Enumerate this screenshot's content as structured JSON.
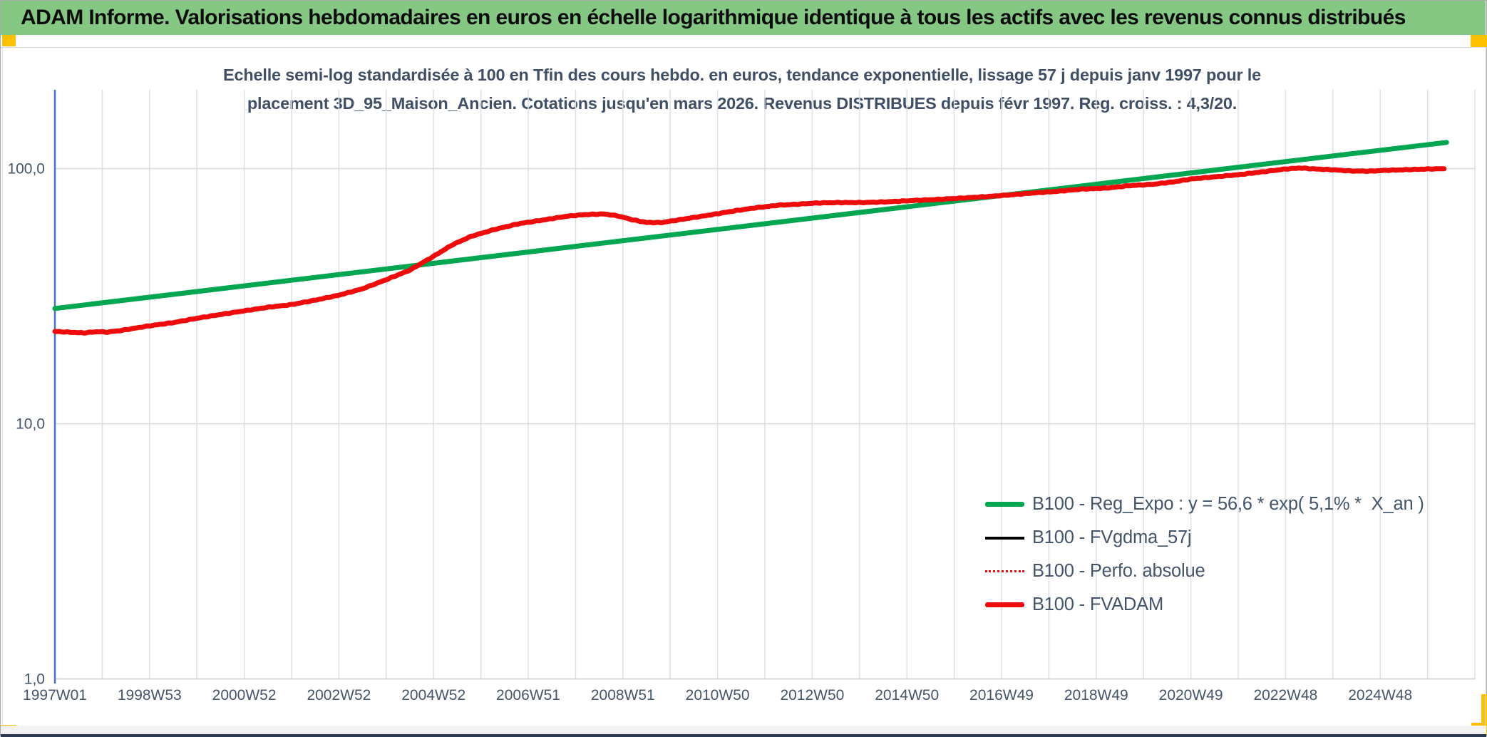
{
  "header": {
    "title": "ADAM Informe. Valorisations hebdomadaires en euros en échelle logarithmique identique à tous les actifs avec les revenus connus distribués",
    "background_color": "#84C884",
    "marker_color": "#FFC000"
  },
  "chart_data": {
    "type": "line",
    "title_line1": "Echelle semi-log standardisée à 100 en Tfin des cours hebdo. en euros, tendance exponentielle, lissage 57 j depuis janv 1997 pour le",
    "title_line2": "placement 3D_95_Maison_Ancien. Cotations jusqu'en mars 2026. Revenus DISTRIBUES depuis févr 1997. Reg. croiss. : 4,3/20.",
    "y_scale": "log10",
    "ylim": [
      1,
      200
    ],
    "grid": true,
    "y_ticks": [
      {
        "label": "100,0",
        "value": 100
      },
      {
        "label": "10,0",
        "value": 10
      },
      {
        "label": "1,0",
        "value": 1
      }
    ],
    "x_ticks": [
      {
        "label": "1997W01",
        "year": 1997
      },
      {
        "label": "1998W53",
        "year": 1999
      },
      {
        "label": "2000W52",
        "year": 2001
      },
      {
        "label": "2002W52",
        "year": 2003
      },
      {
        "label": "2004W52",
        "year": 2005
      },
      {
        "label": "2006W51",
        "year": 2007
      },
      {
        "label": "2008W51",
        "year": 2009
      },
      {
        "label": "2010W50",
        "year": 2011
      },
      {
        "label": "2012W50",
        "year": 2013
      },
      {
        "label": "2014W50",
        "year": 2015
      },
      {
        "label": "2016W49",
        "year": 2017
      },
      {
        "label": "2018W49",
        "year": 2019
      },
      {
        "label": "2020W49",
        "year": 2021
      },
      {
        "label": "2022W48",
        "year": 2023
      },
      {
        "label": "2024W48",
        "year": 2025
      }
    ],
    "xlim_years": [
      1997,
      2027
    ],
    "x_gridline_interval_years": 1,
    "axis_color": "#4472C4",
    "gridline_color": "#DBDFE8",
    "legend_position": "inside-lower-right",
    "legend": [
      {
        "label": "B100 - Reg_Expo : y = 56,6 * exp( 5,1% *  X_an )",
        "color": "#00A650",
        "style": "thick"
      },
      {
        "label": "B100 - FVgdma_57j",
        "color": "#000000",
        "style": "medium"
      },
      {
        "label": "B100 - Perfo. absolue",
        "color": "#E01010",
        "style": "dotted"
      },
      {
        "label": "B100 - FVADAM",
        "color": "#EE0B0B",
        "style": "thick"
      }
    ],
    "series": [
      {
        "name": "B100 - Reg_Expo",
        "color": "#00A650",
        "width": 7,
        "points": [
          [
            1997.0,
            28.3
          ],
          [
            2026.4,
            126.6
          ]
        ]
      },
      {
        "name": "B100 - FVgdma_57j",
        "color": "#000000",
        "width": 3.5,
        "same_as": "B100 - FVADAM"
      },
      {
        "name": "B100 - Perfo. absolue",
        "color": "#E01010",
        "width": 2.5,
        "dash": "2 4",
        "same_as": "B100 - FVADAM"
      },
      {
        "name": "B100 - FVADAM",
        "color": "#EE0B0B",
        "width": 7,
        "jitter": true,
        "points": [
          [
            1997.0,
            23.0
          ],
          [
            1997.3,
            22.85
          ],
          [
            1997.6,
            22.7
          ],
          [
            1997.9,
            22.95
          ],
          [
            1998.1,
            22.85
          ],
          [
            1998.4,
            23.2
          ],
          [
            1998.7,
            23.7
          ],
          [
            1999.0,
            24.2
          ],
          [
            1999.5,
            24.9
          ],
          [
            2000.0,
            25.9
          ],
          [
            2000.5,
            26.8
          ],
          [
            2001.0,
            27.7
          ],
          [
            2001.5,
            28.6
          ],
          [
            2002.0,
            29.3
          ],
          [
            2002.5,
            30.5
          ],
          [
            2003.0,
            31.9
          ],
          [
            2003.5,
            33.8
          ],
          [
            2004.0,
            36.7
          ],
          [
            2004.5,
            40.0
          ],
          [
            2005.0,
            45.3
          ],
          [
            2005.4,
            50.3
          ],
          [
            2005.8,
            54.3
          ],
          [
            2006.3,
            57.8
          ],
          [
            2006.8,
            60.8
          ],
          [
            2007.3,
            62.8
          ],
          [
            2007.8,
            65.0
          ],
          [
            2008.2,
            66.0
          ],
          [
            2008.6,
            66.4
          ],
          [
            2008.9,
            65.2
          ],
          [
            2009.2,
            63.0
          ],
          [
            2009.5,
            61.5
          ],
          [
            2009.8,
            61.4
          ],
          [
            2010.1,
            62.6
          ],
          [
            2010.4,
            63.9
          ],
          [
            2010.8,
            65.6
          ],
          [
            2011.3,
            68.0
          ],
          [
            2011.8,
            70.2
          ],
          [
            2012.3,
            71.9
          ],
          [
            2012.7,
            72.5
          ],
          [
            2013.1,
            73.3
          ],
          [
            2013.6,
            73.6
          ],
          [
            2014.1,
            73.6
          ],
          [
            2014.6,
            74.1
          ],
          [
            2015.1,
            74.9
          ],
          [
            2015.6,
            75.6
          ],
          [
            2016.2,
            76.7
          ],
          [
            2016.7,
            77.7
          ],
          [
            2017.2,
            78.9
          ],
          [
            2017.7,
            80.3
          ],
          [
            2018.2,
            81.5
          ],
          [
            2018.7,
            83.1
          ],
          [
            2019.2,
            83.8
          ],
          [
            2019.7,
            85.7
          ],
          [
            2020.2,
            86.8
          ],
          [
            2020.6,
            88.5
          ],
          [
            2021.0,
            91.0
          ],
          [
            2021.5,
            92.8
          ],
          [
            2022.0,
            94.6
          ],
          [
            2022.5,
            97.0
          ],
          [
            2023.0,
            99.6
          ],
          [
            2023.3,
            100.5
          ],
          [
            2023.6,
            99.7
          ],
          [
            2024.0,
            98.9
          ],
          [
            2024.4,
            97.8
          ],
          [
            2024.8,
            97.7
          ],
          [
            2025.1,
            98.4
          ],
          [
            2025.5,
            98.9
          ],
          [
            2026.0,
            99.6
          ],
          [
            2026.35,
            99.9
          ]
        ]
      }
    ]
  }
}
